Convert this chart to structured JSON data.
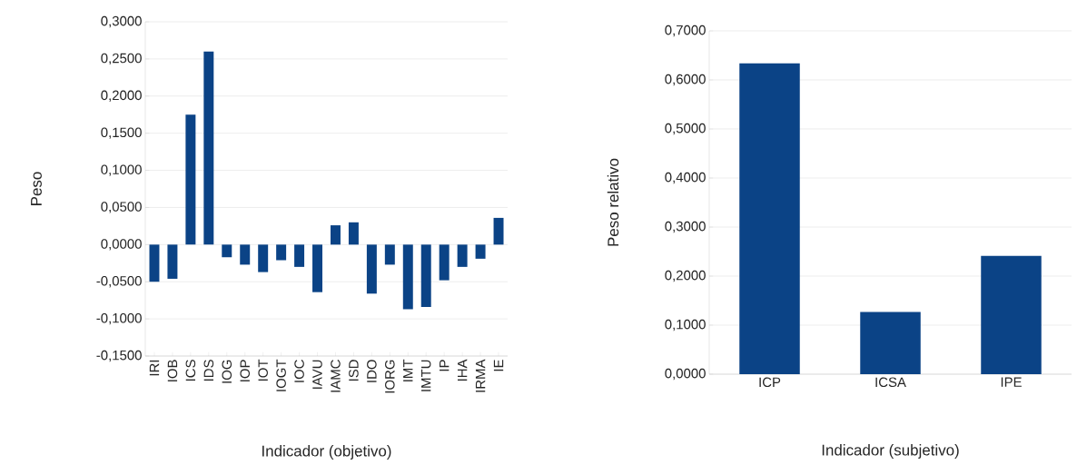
{
  "chart_data": [
    {
      "type": "bar",
      "xlabel": "Indicador (objetivo)",
      "ylabel": "Peso",
      "categories": [
        "IRI",
        "IOB",
        "ICS",
        "IDS",
        "IOG",
        "IOP",
        "IOT",
        "IOGT",
        "IOC",
        "IAVU",
        "IAMC",
        "ISD",
        "IDO",
        "IORG",
        "IMT",
        "IMTU",
        "IP",
        "IHA",
        "IRMA",
        "IE"
      ],
      "values": [
        -0.05,
        -0.046,
        0.175,
        0.26,
        -0.017,
        -0.027,
        -0.037,
        -0.021,
        -0.03,
        -0.064,
        0.026,
        0.03,
        -0.066,
        -0.027,
        -0.087,
        -0.084,
        -0.048,
        -0.03,
        -0.019,
        0.036
      ],
      "color": "#0b4386",
      "ylim": [
        -0.15,
        0.3
      ],
      "yticks": [
        {
          "value": -0.15,
          "label": "-0,1500"
        },
        {
          "value": -0.1,
          "label": "-0,1000"
        },
        {
          "value": -0.05,
          "label": "-0,0500"
        },
        {
          "value": 0,
          "label": "0,0000"
        },
        {
          "value": 0.05,
          "label": "0,0500"
        },
        {
          "value": 0.1,
          "label": "0,1000"
        },
        {
          "value": 0.15,
          "label": "0,1500"
        },
        {
          "value": 0.2,
          "label": "0,2000"
        },
        {
          "value": 0.25,
          "label": "0,2500"
        },
        {
          "value": 0.3,
          "label": "0,3000"
        }
      ],
      "grid": "y"
    },
    {
      "type": "bar",
      "xlabel": "Indicador (subjetivo)",
      "ylabel": "Peso relativo",
      "categories": [
        "ICP",
        "ICSA",
        "IPE"
      ],
      "values": [
        0.634,
        0.127,
        0.241
      ],
      "color": "#0b4386",
      "ylim": [
        0,
        0.7
      ],
      "yticks": [
        {
          "value": 0,
          "label": "0,0000"
        },
        {
          "value": 0.1,
          "label": "0,1000"
        },
        {
          "value": 0.2,
          "label": "0,2000"
        },
        {
          "value": 0.3,
          "label": "0,3000"
        },
        {
          "value": 0.4,
          "label": "0,4000"
        },
        {
          "value": 0.5,
          "label": "0,5000"
        },
        {
          "value": 0.6,
          "label": "0,6000"
        },
        {
          "value": 0.7,
          "label": "0,7000"
        }
      ],
      "grid": "y"
    }
  ]
}
